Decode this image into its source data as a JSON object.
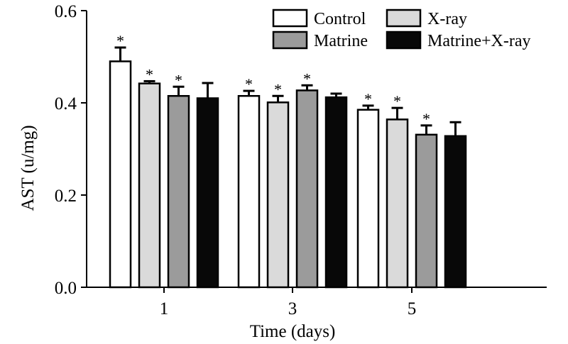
{
  "chart_data": {
    "type": "bar",
    "title": "",
    "xlabel": "Time (days)",
    "ylabel": "AST (u/mg)",
    "ylim": [
      0,
      0.6
    ],
    "yticks": [
      "0.0",
      "0.2",
      "0.4",
      "0.6"
    ],
    "categories": [
      "1",
      "3",
      "5"
    ],
    "series": [
      {
        "name": "Control",
        "color": "#ffffff",
        "values": [
          0.49,
          0.415,
          0.385
        ],
        "errors": [
          0.03,
          0.011,
          0.009
        ],
        "significant": [
          true,
          true,
          true
        ]
      },
      {
        "name": "X-ray",
        "color": "#dadada",
        "values": [
          0.442,
          0.401,
          0.364
        ],
        "errors": [
          0.005,
          0.014,
          0.025
        ],
        "significant": [
          true,
          true,
          true
        ]
      },
      {
        "name": "Matrine",
        "color": "#9b9b9b",
        "values": [
          0.415,
          0.427,
          0.331
        ],
        "errors": [
          0.02,
          0.011,
          0.02
        ],
        "significant": [
          true,
          true,
          true
        ]
      },
      {
        "name": "Matrine+X-ray",
        "color": "#080808",
        "values": [
          0.41,
          0.412,
          0.328
        ],
        "errors": [
          0.033,
          0.008,
          0.03
        ],
        "significant": [
          false,
          false,
          false
        ]
      }
    ],
    "significance_marker": "*",
    "legend_position": "top-right"
  }
}
